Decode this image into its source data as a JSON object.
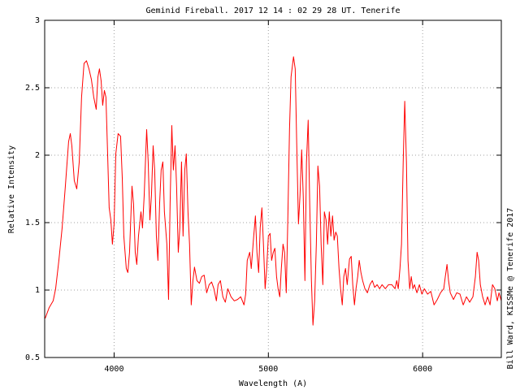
{
  "chart_data": {
    "type": "line",
    "title": "Geminid Fireball. 2017 12 14 : 02 29 28 UT. Tenerife",
    "xlabel": "Wavelength (A)",
    "ylabel": "Relative Intensity",
    "credit": "Bill Ward, KISSMe @ Tenerife 2017",
    "color": "#ff0000",
    "grid": true,
    "xlim": [
      3550,
      6510
    ],
    "xticks": [
      4000,
      5000,
      6000
    ],
    "ylim": [
      0.5,
      3
    ],
    "yticks": [
      0.5,
      1,
      1.5,
      2,
      2.5,
      3
    ],
    "x": [
      3553,
      3579,
      3605,
      3621,
      3642,
      3663,
      3684,
      3705,
      3716,
      3726,
      3742,
      3758,
      3774,
      3789,
      3805,
      3821,
      3837,
      3853,
      3868,
      3884,
      3895,
      3905,
      3916,
      3926,
      3937,
      3947,
      3958,
      3968,
      3979,
      3989,
      4000,
      4011,
      4026,
      4042,
      4053,
      4063,
      4079,
      4089,
      4100,
      4116,
      4126,
      4137,
      4147,
      4158,
      4174,
      4184,
      4195,
      4211,
      4221,
      4232,
      4242,
      4253,
      4263,
      4274,
      4284,
      4295,
      4305,
      4316,
      4326,
      4342,
      4353,
      4363,
      4374,
      4384,
      4395,
      4405,
      4416,
      4426,
      4437,
      4447,
      4458,
      4468,
      4479,
      4489,
      4500,
      4511,
      4521,
      4537,
      4553,
      4568,
      4584,
      4600,
      4616,
      4632,
      4647,
      4663,
      4674,
      4689,
      4705,
      4721,
      4737,
      4758,
      4779,
      4800,
      4821,
      4842,
      4853,
      4863,
      4879,
      4889,
      4905,
      4916,
      4926,
      4937,
      4947,
      4958,
      4968,
      4979,
      4989,
      5000,
      5011,
      5021,
      5032,
      5042,
      5053,
      5063,
      5074,
      5084,
      5095,
      5105,
      5116,
      5126,
      5137,
      5147,
      5163,
      5174,
      5184,
      5195,
      5205,
      5216,
      5226,
      5237,
      5247,
      5258,
      5268,
      5279,
      5289,
      5300,
      5311,
      5321,
      5332,
      5342,
      5353,
      5363,
      5374,
      5384,
      5395,
      5405,
      5416,
      5426,
      5437,
      5447,
      5458,
      5468,
      5479,
      5489,
      5500,
      5511,
      5526,
      5537,
      5547,
      5558,
      5568,
      5579,
      5589,
      5600,
      5611,
      5626,
      5642,
      5658,
      5674,
      5689,
      5705,
      5721,
      5737,
      5758,
      5779,
      5800,
      5821,
      5832,
      5842,
      5853,
      5863,
      5874,
      5884,
      5895,
      5905,
      5916,
      5926,
      5937,
      5947,
      5963,
      5979,
      5995,
      6011,
      6032,
      6053,
      6074,
      6095,
      6116,
      6137,
      6147,
      6158,
      6168,
      6179,
      6200,
      6221,
      6242,
      6263,
      6284,
      6305,
      6326,
      6342,
      6353,
      6363,
      6374,
      6389,
      6405,
      6421,
      6437,
      6453,
      6468,
      6484,
      6495,
      6510
    ],
    "values": [
      0.79,
      0.87,
      0.92,
      1.01,
      1.22,
      1.46,
      1.77,
      2.1,
      2.16,
      2.07,
      1.81,
      1.75,
      1.95,
      2.43,
      2.68,
      2.7,
      2.64,
      2.56,
      2.43,
      2.34,
      2.58,
      2.64,
      2.55,
      2.37,
      2.48,
      2.43,
      2.01,
      1.61,
      1.52,
      1.34,
      1.49,
      2.01,
      2.16,
      2.14,
      1.83,
      1.4,
      1.16,
      1.13,
      1.28,
      1.77,
      1.64,
      1.28,
      1.19,
      1.4,
      1.58,
      1.46,
      1.7,
      2.19,
      1.95,
      1.52,
      1.7,
      2.07,
      1.89,
      1.4,
      1.22,
      1.64,
      1.89,
      1.95,
      1.58,
      1.34,
      0.93,
      1.64,
      2.22,
      1.89,
      2.07,
      1.77,
      1.28,
      1.46,
      1.95,
      1.4,
      1.89,
      2.01,
      1.58,
      1.34,
      0.89,
      1.07,
      1.17,
      1.07,
      1.05,
      1.1,
      1.11,
      0.98,
      1.04,
      1.06,
      1.01,
      0.92,
      1.04,
      1.07,
      0.95,
      0.91,
      1.01,
      0.95,
      0.92,
      0.93,
      0.95,
      0.89,
      0.97,
      1.22,
      1.28,
      1.16,
      1.4,
      1.55,
      1.28,
      1.13,
      1.46,
      1.61,
      1.34,
      1.01,
      1.16,
      1.4,
      1.42,
      1.22,
      1.28,
      1.31,
      1.1,
      1.01,
      0.95,
      1.16,
      1.34,
      1.28,
      0.98,
      1.52,
      2.19,
      2.58,
      2.73,
      2.64,
      2.07,
      1.49,
      1.7,
      2.04,
      1.7,
      1.07,
      1.95,
      2.26,
      1.64,
      1.07,
      0.74,
      0.92,
      1.34,
      1.92,
      1.77,
      1.34,
      1.04,
      1.58,
      1.52,
      1.34,
      1.58,
      1.4,
      1.55,
      1.37,
      1.43,
      1.4,
      1.16,
      1.01,
      0.89,
      1.1,
      1.16,
      1.04,
      1.23,
      1.25,
      1.04,
      0.89,
      1.01,
      1.1,
      1.22,
      1.13,
      1.07,
      1.01,
      0.98,
      1.04,
      1.07,
      1.02,
      1.04,
      1.01,
      1.04,
      1.01,
      1.04,
      1.04,
      1.01,
      1.07,
      1.01,
      1.16,
      1.34,
      1.95,
      2.4,
      1.95,
      1.22,
      1.01,
      1.1,
      1.01,
      1.04,
      0.98,
      1.04,
      0.97,
      1.01,
      0.97,
      0.99,
      0.89,
      0.93,
      0.98,
      1.01,
      1.1,
      1.19,
      1.07,
      0.98,
      0.93,
      0.98,
      0.97,
      0.89,
      0.95,
      0.91,
      0.95,
      1.1,
      1.28,
      1.22,
      1.04,
      0.95,
      0.89,
      0.95,
      0.89,
      1.04,
      1.01,
      0.92,
      0.98,
      0.92
    ]
  }
}
